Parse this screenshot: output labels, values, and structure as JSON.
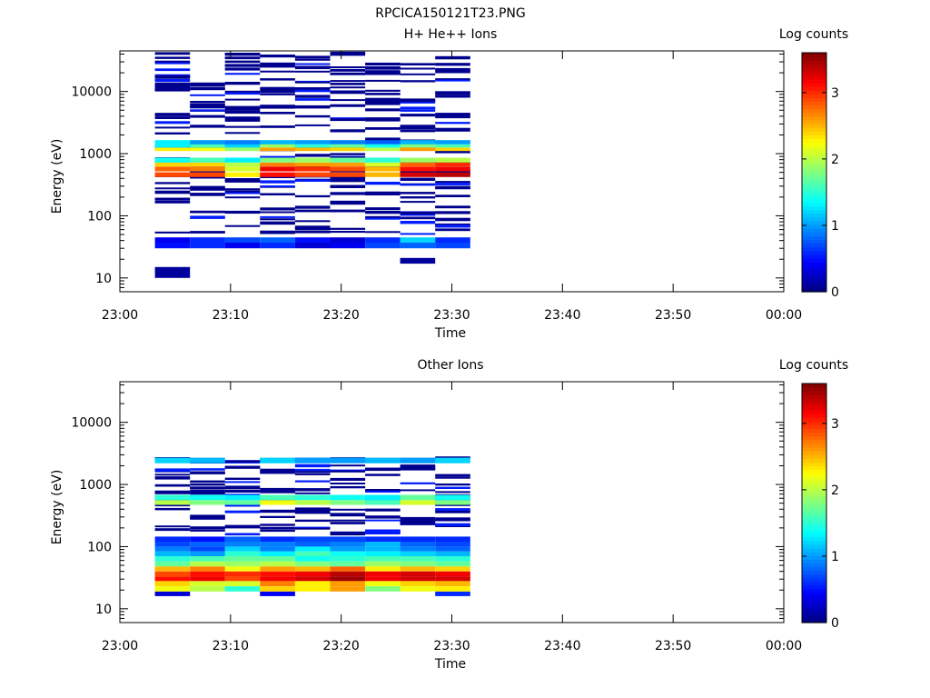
{
  "figure_title": "RPCICA150121T23.PNG",
  "chart_data": [
    {
      "type": "heatmap",
      "title": "H+ He++ Ions",
      "xlabel": "Time",
      "ylabel": "Energy (eV)",
      "x_ticks": [
        "23:00",
        "23:10",
        "23:20",
        "23:30",
        "23:40",
        "23:50",
        "00:00"
      ],
      "x_range": [
        "23:00",
        "00:00"
      ],
      "y_scale": "log",
      "y_range": [
        6,
        45000
      ],
      "y_ticks": [
        "10",
        "100",
        "1000",
        "10000"
      ],
      "colorbar": {
        "label": "Log counts",
        "range": [
          0,
          3.6
        ],
        "ticks": [
          "0",
          "1",
          "2",
          "3"
        ],
        "colormap": "jet"
      },
      "time_bins": [
        [
          "23:03:10",
          "23:06:20"
        ],
        [
          "23:06:20",
          "23:09:30"
        ],
        [
          "23:09:30",
          "23:12:40"
        ],
        [
          "23:12:40",
          "23:15:50"
        ],
        [
          "23:15:50",
          "23:19:00"
        ],
        [
          "23:19:00",
          "23:22:10"
        ],
        [
          "23:22:10",
          "23:25:20"
        ],
        [
          "23:25:20",
          "23:28:30"
        ],
        [
          "23:28:30",
          "23:31:40"
        ]
      ],
      "energy_bands": [
        {
          "e": [
            37,
            45
          ],
          "values": [
            0.4,
            0.6,
            0.7,
            0.8,
            0.5,
            0.3,
            0.6,
            1.2,
            0.6
          ]
        },
        {
          "e": [
            30,
            37
          ],
          "values": [
            0.5,
            0.6,
            0.4,
            0.6,
            0.3,
            0.4,
            0.7,
            0.8,
            0.7
          ]
        },
        {
          "e": [
            10,
            15
          ],
          "values": [
            0.1,
            null,
            null,
            null,
            null,
            null,
            null,
            null,
            null
          ]
        },
        {
          "e": [
            17,
            21
          ],
          "values": [
            null,
            null,
            null,
            null,
            null,
            null,
            null,
            0.1,
            null
          ]
        },
        {
          "e": [
            420,
            500
          ],
          "values": [
            2.9,
            2.9,
            2.3,
            3.1,
            2.9,
            2.9,
            2.5,
            3.3,
            3.4
          ]
        },
        {
          "e": [
            520,
            620
          ],
          "values": [
            2.8,
            2.7,
            2.1,
            3.2,
            3.0,
            2.9,
            2.5,
            3.1,
            3.2
          ]
        },
        {
          "e": [
            620,
            720
          ],
          "values": [
            2.4,
            2.4,
            2.0,
            2.7,
            2.6,
            2.6,
            2.1,
            2.8,
            3.0
          ]
        },
        {
          "e": [
            720,
            860
          ],
          "values": [
            1.4,
            1.6,
            1.3,
            1.8,
            1.9,
            1.7,
            1.5,
            1.9,
            2.0
          ]
        },
        {
          "e": [
            1100,
            1250
          ],
          "values": [
            2.3,
            2.2,
            1.9,
            2.6,
            2.5,
            2.4,
            2.0,
            2.6,
            2.4
          ]
        },
        {
          "e": [
            1250,
            1420
          ],
          "values": [
            1.3,
            1.6,
            1.2,
            1.9,
            1.5,
            1.7,
            1.4,
            1.8,
            1.6
          ]
        },
        {
          "e": [
            1420,
            1650
          ],
          "values": [
            1.3,
            1.0,
            0.9,
            1.1,
            1.0,
            0.9,
            0.8,
            1.1,
            1.0
          ]
        }
      ],
      "sparse_level": 0.05
    },
    {
      "type": "heatmap",
      "title": "Other Ions",
      "xlabel": "Time",
      "ylabel": "Energy (eV)",
      "x_ticks": [
        "23:00",
        "23:10",
        "23:20",
        "23:30",
        "23:40",
        "23:50",
        "00:00"
      ],
      "x_range": [
        "23:00",
        "00:00"
      ],
      "y_scale": "log",
      "y_range": [
        6,
        45000
      ],
      "y_ticks": [
        "10",
        "100",
        "1000",
        "10000"
      ],
      "colorbar": {
        "label": "Log counts",
        "range": [
          0,
          3.6
        ],
        "ticks": [
          "0",
          "1",
          "2",
          "3"
        ],
        "colormap": "jet"
      },
      "time_bins": [
        [
          "23:03:10",
          "23:06:20"
        ],
        [
          "23:06:20",
          "23:09:30"
        ],
        [
          "23:09:30",
          "23:12:40"
        ],
        [
          "23:12:40",
          "23:15:50"
        ],
        [
          "23:15:50",
          "23:19:00"
        ],
        [
          "23:19:00",
          "23:22:10"
        ],
        [
          "23:22:10",
          "23:25:20"
        ],
        [
          "23:25:20",
          "23:28:30"
        ],
        [
          "23:28:30",
          "23:31:40"
        ]
      ],
      "energy_bands": [
        {
          "e": [
            16,
            19
          ],
          "values": [
            0.3,
            null,
            null,
            0.4,
            null,
            null,
            null,
            null,
            0.6
          ]
        },
        {
          "e": [
            19,
            23
          ],
          "values": [
            2.2,
            2.0,
            1.5,
            2.4,
            2.3,
            2.6,
            1.8,
            2.2,
            2.3
          ]
        },
        {
          "e": [
            23,
            28
          ],
          "values": [
            2.4,
            2.1,
            2.1,
            2.7,
            2.3,
            2.6,
            2.2,
            2.4,
            2.5
          ]
        },
        {
          "e": [
            28,
            33
          ],
          "values": [
            3.1,
            3.2,
            2.9,
            3.2,
            3.3,
            3.5,
            3.2,
            3.3,
            3.3
          ]
        },
        {
          "e": [
            33,
            40
          ],
          "values": [
            2.9,
            3.1,
            3.0,
            3.1,
            3.2,
            3.4,
            3.2,
            3.3,
            3.2
          ]
        },
        {
          "e": [
            40,
            48
          ],
          "values": [
            2.5,
            2.7,
            2.2,
            2.6,
            2.5,
            2.8,
            2.3,
            2.5,
            2.4
          ]
        },
        {
          "e": [
            48,
            58
          ],
          "values": [
            1.7,
            2.0,
            1.9,
            2.0,
            1.8,
            1.7,
            1.9,
            1.8,
            1.7
          ]
        },
        {
          "e": [
            58,
            70
          ],
          "values": [
            1.5,
            1.6,
            1.7,
            1.7,
            1.4,
            1.5,
            1.6,
            1.6,
            1.5
          ]
        },
        {
          "e": [
            70,
            84
          ],
          "values": [
            1.1,
            1.0,
            1.5,
            1.3,
            1.6,
            1.4,
            1.3,
            1.2,
            1.1
          ]
        },
        {
          "e": [
            84,
            100
          ],
          "values": [
            0.9,
            0.7,
            1.2,
            0.9,
            1.3,
            1.0,
            1.1,
            0.9,
            0.8
          ]
        },
        {
          "e": [
            100,
            120
          ],
          "values": [
            0.7,
            0.8,
            0.9,
            0.9,
            0.8,
            0.9,
            1.1,
            0.8,
            0.7
          ]
        },
        {
          "e": [
            120,
            145
          ],
          "values": [
            0.6,
            0.5,
            0.8,
            0.6,
            0.7,
            0.7,
            0.6,
            0.6,
            0.6
          ]
        },
        {
          "e": [
            470,
            560
          ],
          "values": [
            2.0,
            1.8,
            1.7,
            2.2,
            2.0,
            1.8,
            1.6,
            2.1,
            1.8
          ]
        },
        {
          "e": [
            560,
            680
          ],
          "values": [
            1.5,
            1.4,
            1.3,
            1.6,
            1.5,
            1.4,
            1.3,
            1.7,
            1.4
          ]
        },
        {
          "e": [
            2200,
            2700
          ],
          "values": [
            1.2,
            1.1,
            null,
            1.2,
            1.0,
            1.0,
            1.1,
            1.0,
            1.2
          ]
        }
      ],
      "sparse_level": 0.05
    }
  ]
}
